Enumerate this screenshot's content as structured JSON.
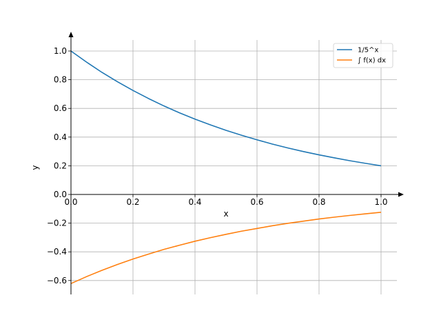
{
  "chart_data": {
    "type": "line",
    "title": "",
    "xlabel": "x",
    "ylabel": "y",
    "xlim": [
      0.0,
      1.05
    ],
    "ylim": [
      -0.7,
      1.1
    ],
    "grid": true,
    "legend_position": "top-right",
    "x_ticks": [
      0.0,
      0.2,
      0.4,
      0.6,
      0.8,
      1.0
    ],
    "x_tick_labels": [
      "0.0",
      "0.2",
      "0.4",
      "0.6",
      "0.8",
      "1.0"
    ],
    "y_ticks": [
      -0.6,
      -0.4,
      -0.2,
      0.0,
      0.2,
      0.4,
      0.6,
      0.8,
      1.0
    ],
    "y_tick_labels": [
      "−0.6",
      "−0.4",
      "−0.2",
      "0.0",
      "0.2",
      "0.4",
      "0.6",
      "0.8",
      "1.0"
    ],
    "series": [
      {
        "name": "1/5^x",
        "color": "#1f77b4",
        "x": [
          0.0,
          0.05,
          0.1,
          0.15,
          0.2,
          0.25,
          0.3,
          0.35,
          0.4,
          0.45,
          0.5,
          0.55,
          0.6,
          0.65,
          0.7,
          0.75,
          0.8,
          0.85,
          0.9,
          0.95,
          1.0
        ],
        "y": [
          1.0,
          0.923,
          0.851,
          0.786,
          0.725,
          0.669,
          0.617,
          0.569,
          0.525,
          0.485,
          0.447,
          0.413,
          0.381,
          0.351,
          0.324,
          0.299,
          0.276,
          0.255,
          0.235,
          0.217,
          0.2
        ]
      },
      {
        "name": "∫ f(x) dx",
        "color": "#ff7f0e",
        "x": [
          0.0,
          0.05,
          0.1,
          0.15,
          0.2,
          0.25,
          0.3,
          0.35,
          0.4,
          0.45,
          0.5,
          0.55,
          0.6,
          0.65,
          0.7,
          0.75,
          0.8,
          0.85,
          0.9,
          0.95,
          1.0
        ],
        "y": [
          -0.621,
          -0.573,
          -0.529,
          -0.488,
          -0.45,
          -0.416,
          -0.383,
          -0.354,
          -0.326,
          -0.301,
          -0.278,
          -0.256,
          -0.237,
          -0.218,
          -0.201,
          -0.186,
          -0.171,
          -0.158,
          -0.146,
          -0.135,
          -0.124
        ]
      }
    ]
  }
}
